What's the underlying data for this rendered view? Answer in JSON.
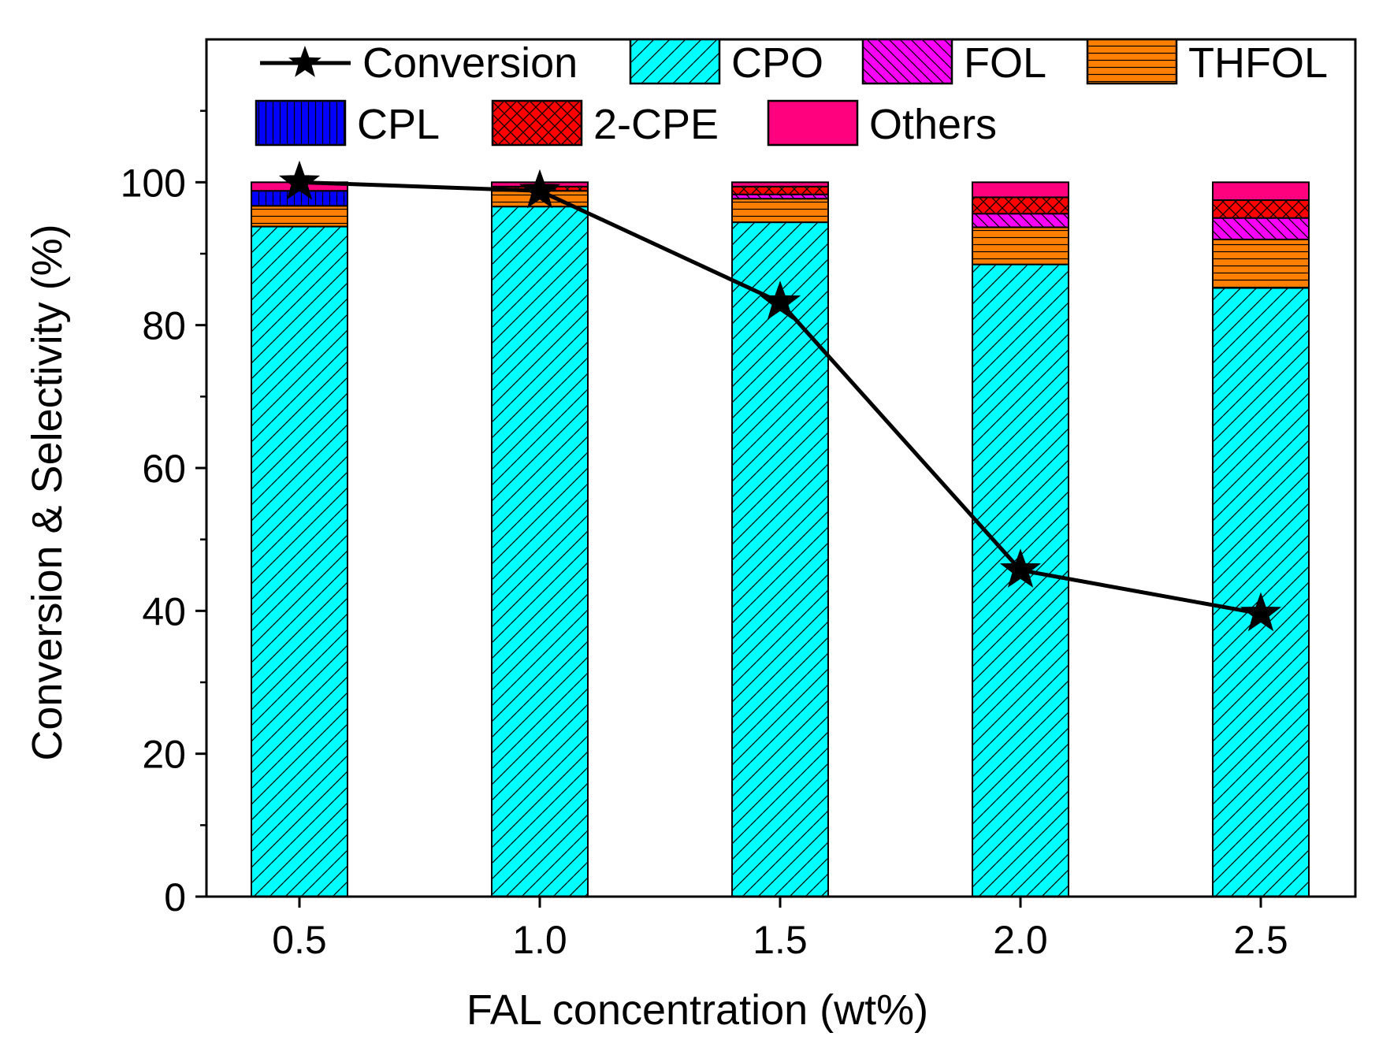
{
  "chart_data": {
    "type": "bar",
    "stacked": true,
    "title": "",
    "xlabel": "FAL concentration (wt%)",
    "ylabel": "Conversion & Selectivity (%)",
    "ylim": [
      0,
      120
    ],
    "yticks": [
      0,
      20,
      40,
      60,
      80,
      100
    ],
    "categories": [
      "0.5",
      "1.0",
      "1.5",
      "2.0",
      "2.5"
    ],
    "series": [
      {
        "name": "CPO",
        "color": "#00FFFF",
        "pattern": "diag-forward",
        "values": [
          93.8,
          96.6,
          94.4,
          88.5,
          85.2
        ]
      },
      {
        "name": "THFOL",
        "color": "#FF8000",
        "pattern": "horizontal",
        "values": [
          2.9,
          2.2,
          3.3,
          5.2,
          6.8
        ]
      },
      {
        "name": "FOL",
        "color": "#FF00FF",
        "pattern": "diag-back",
        "values": [
          0.0,
          0.0,
          0.6,
          1.9,
          3.0
        ]
      },
      {
        "name": "CPL",
        "color": "#0000FF",
        "pattern": "vertical",
        "values": [
          2.1,
          0.0,
          0.0,
          0.0,
          0.0
        ]
      },
      {
        "name": "2-CPE",
        "color": "#FF0000",
        "pattern": "crosshatch",
        "values": [
          0.0,
          0.6,
          1.1,
          2.3,
          2.5
        ]
      },
      {
        "name": "Others",
        "color": "#FF007F",
        "pattern": "solid",
        "values": [
          1.2,
          0.6,
          0.6,
          2.1,
          2.5
        ]
      }
    ],
    "line": {
      "name": "Conversion",
      "color": "#000000",
      "marker": "star",
      "values": [
        100.0,
        98.8,
        83.2,
        45.7,
        39.6
      ]
    },
    "legend_order": [
      "Conversion",
      "CPO",
      "FOL",
      "THFOL",
      "CPL",
      "2-CPE",
      "Others"
    ],
    "legend_position": "top"
  }
}
